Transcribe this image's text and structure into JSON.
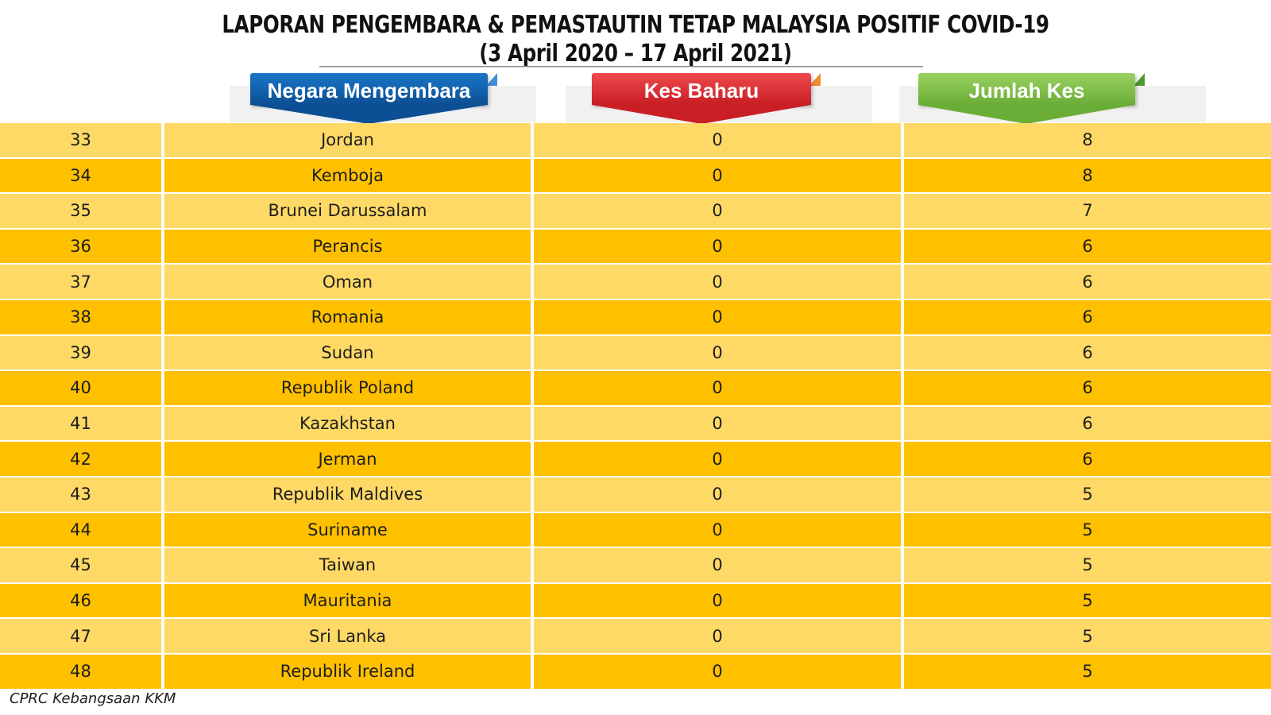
{
  "title": {
    "line1": "LAPORAN PENGEMBARA & PEMASTAUTIN TETAP MALAYSIA POSITIF COVID-19",
    "line2": "(3 April 2020 – 17 April 2021)"
  },
  "headers": {
    "country": "Negara Mengembara",
    "new_cases": "Kes Baharu",
    "total_cases": "Jumlah Kes"
  },
  "colors": {
    "row_light": "#FED966",
    "row_dark": "#FFC000",
    "header_country": "#0F62AC",
    "header_new": "#E0262B",
    "header_total": "#79C143"
  },
  "rows": [
    {
      "no": "33",
      "country": "Jordan",
      "new": "0",
      "total": "8"
    },
    {
      "no": "34",
      "country": "Kemboja",
      "new": "0",
      "total": "8"
    },
    {
      "no": "35",
      "country": "Brunei Darussalam",
      "new": "0",
      "total": "7"
    },
    {
      "no": "36",
      "country": "Perancis",
      "new": "0",
      "total": "6"
    },
    {
      "no": "37",
      "country": "Oman",
      "new": "0",
      "total": "6"
    },
    {
      "no": "38",
      "country": "Romania",
      "new": "0",
      "total": "6"
    },
    {
      "no": "39",
      "country": "Sudan",
      "new": "0",
      "total": "6"
    },
    {
      "no": "40",
      "country": "Republik Poland",
      "new": "0",
      "total": "6"
    },
    {
      "no": "41",
      "country": "Kazakhstan",
      "new": "0",
      "total": "6"
    },
    {
      "no": "42",
      "country": "Jerman",
      "new": "0",
      "total": "6"
    },
    {
      "no": "43",
      "country": "Republik Maldives",
      "new": "0",
      "total": "5"
    },
    {
      "no": "44",
      "country": "Suriname",
      "new": "0",
      "total": "5"
    },
    {
      "no": "45",
      "country": "Taiwan",
      "new": "0",
      "total": "5"
    },
    {
      "no": "46",
      "country": "Mauritania",
      "new": "0",
      "total": "5"
    },
    {
      "no": "47",
      "country": "Sri Lanka",
      "new": "0",
      "total": "5"
    },
    {
      "no": "48",
      "country": "Republik Ireland",
      "new": "0",
      "total": "5"
    }
  ],
  "footer": "CPRC Kebangsaan KKM"
}
